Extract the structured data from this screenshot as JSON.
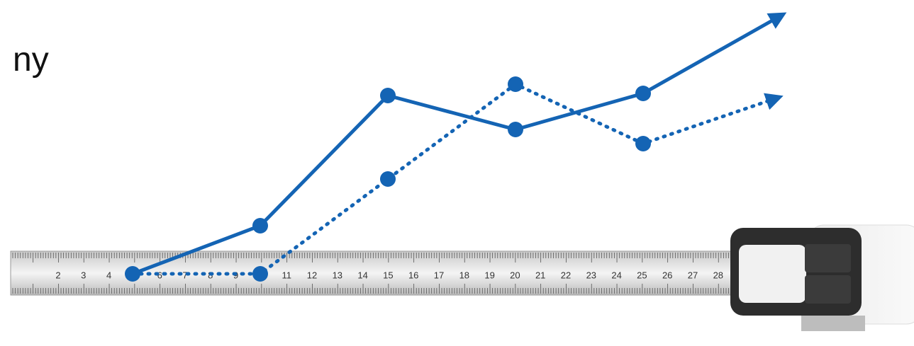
{
  "heading": "ny",
  "ruler": {
    "labels": [
      2,
      3,
      4,
      6,
      7,
      8,
      9,
      11,
      12,
      13,
      14,
      15,
      16,
      17,
      18,
      19,
      20,
      21,
      22,
      23,
      24,
      25,
      26,
      27,
      28
    ],
    "highlight": 20
  }
}
